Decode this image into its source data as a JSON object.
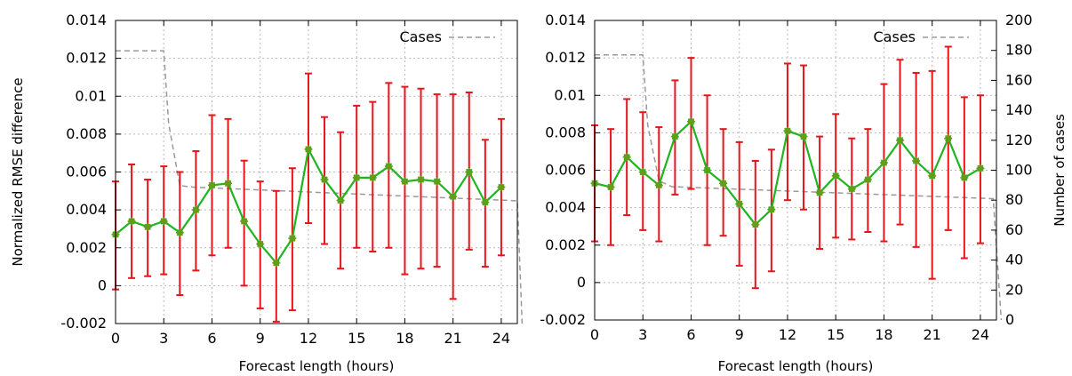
{
  "colors": {
    "error_bar": "#e8141b",
    "line": "#1fb51f",
    "marker": "#6a9a1a",
    "cases": "#9a9a9a",
    "grid": "#b8b8b8"
  },
  "chart_data": [
    {
      "type": "line",
      "title": "",
      "xlabel": "Forecast length (hours)",
      "ylabel": "Normalized RMSE difference",
      "xlim": [
        0,
        25
      ],
      "ylim": [
        -0.002,
        0.014
      ],
      "xticks": [
        0,
        3,
        6,
        9,
        12,
        15,
        18,
        21,
        24
      ],
      "yticks": [
        -0.002,
        0,
        0.002,
        0.004,
        0.006,
        0.008,
        0.01,
        0.012,
        0.014
      ],
      "ytick_labels": [
        "-0.002",
        "0",
        "0.002",
        "0.004",
        "0.006",
        "0.008",
        "0.01",
        "0.012",
        "0.014"
      ],
      "grid": true,
      "legend": {
        "placement": "top-right",
        "entries": [
          "Cases"
        ]
      },
      "series": [
        {
          "x": [
            0,
            1,
            2,
            3,
            4,
            5,
            6,
            7,
            8,
            9,
            10,
            11,
            12,
            13,
            14,
            15,
            16,
            17,
            18,
            19,
            20,
            21,
            22,
            23,
            24
          ],
          "y": [
            0.0027,
            0.0034,
            0.0031,
            0.0034,
            0.0028,
            0.004,
            0.0053,
            0.0054,
            0.0034,
            0.0022,
            0.0012,
            0.0025,
            0.0072,
            0.0056,
            0.0045,
            0.0057,
            0.0057,
            0.0063,
            0.0055,
            0.0056,
            0.0055,
            0.0047,
            0.006,
            0.0044,
            0.0052
          ],
          "ylow": [
            -0.0002,
            0.0004,
            0.0005,
            0.0006,
            -0.0005,
            0.0008,
            0.0016,
            0.002,
            0.0,
            -0.0012,
            -0.0019,
            -0.0013,
            0.0033,
            0.0022,
            0.0009,
            0.002,
            0.0018,
            0.002,
            0.0006,
            0.0009,
            0.001,
            -0.0007,
            0.0019,
            0.001,
            0.0016
          ],
          "yhigh": [
            0.0055,
            0.0064,
            0.0056,
            0.0063,
            0.006,
            0.0071,
            0.009,
            0.0088,
            0.0066,
            0.0055,
            0.005,
            0.0062,
            0.0112,
            0.0089,
            0.0081,
            0.0095,
            0.0097,
            0.0107,
            0.0105,
            0.0104,
            0.0101,
            0.0101,
            0.0102,
            0.0077,
            0.0088
          ]
        },
        {
          "name": "Cases",
          "axis": "secondary",
          "x": [
            0,
            3,
            3.3,
            4,
            4.8,
            25,
            25.3
          ],
          "y": [
            180,
            180,
            132,
            91,
            90,
            81,
            0
          ]
        }
      ],
      "y2lim": [
        0,
        200
      ]
    },
    {
      "type": "line",
      "title": "",
      "xlabel": "Forecast length (hours)",
      "ylabel": "",
      "y2label": "Number of cases",
      "xlim": [
        0,
        25
      ],
      "ylim": [
        -0.002,
        0.014
      ],
      "y2lim": [
        0,
        200
      ],
      "xticks": [
        0,
        3,
        6,
        9,
        12,
        15,
        18,
        21,
        24
      ],
      "yticks": [
        -0.002,
        0,
        0.002,
        0.004,
        0.006,
        0.008,
        0.01,
        0.012,
        0.014
      ],
      "ytick_labels": [
        "-0.002",
        "0",
        "0.002",
        "0.004",
        "0.006",
        "0.008",
        "0.01",
        "0.012",
        "0.014"
      ],
      "y2ticks": [
        0,
        20,
        40,
        60,
        80,
        100,
        120,
        140,
        160,
        180,
        200
      ],
      "grid": true,
      "legend": {
        "placement": "top-right",
        "entries": [
          "Cases"
        ]
      },
      "series": [
        {
          "x": [
            0,
            1,
            2,
            3,
            4,
            5,
            6,
            7,
            8,
            9,
            10,
            11,
            12,
            13,
            14,
            15,
            16,
            17,
            18,
            19,
            20,
            21,
            22,
            23,
            24
          ],
          "y": [
            0.0053,
            0.0051,
            0.0067,
            0.0059,
            0.0052,
            0.0078,
            0.0086,
            0.006,
            0.0053,
            0.0042,
            0.0031,
            0.0039,
            0.0081,
            0.0078,
            0.0048,
            0.0057,
            0.005,
            0.0055,
            0.0064,
            0.0076,
            0.0065,
            0.0057,
            0.0077,
            0.0056,
            0.0061
          ],
          "ylow": [
            0.0022,
            0.002,
            0.0036,
            0.0028,
            0.0022,
            0.0047,
            0.005,
            0.002,
            0.0025,
            0.0009,
            -0.0003,
            0.0006,
            0.0044,
            0.0039,
            0.0018,
            0.0024,
            0.0023,
            0.0027,
            0.0022,
            0.0031,
            0.0019,
            0.0002,
            0.0028,
            0.0013,
            0.0021
          ],
          "yhigh": [
            0.0084,
            0.0082,
            0.0098,
            0.0091,
            0.0083,
            0.0108,
            0.012,
            0.01,
            0.0082,
            0.0075,
            0.0065,
            0.0071,
            0.0117,
            0.0116,
            0.0078,
            0.009,
            0.0077,
            0.0082,
            0.0106,
            0.0119,
            0.0112,
            0.0113,
            0.0126,
            0.0099,
            0.01
          ]
        },
        {
          "name": "Cases",
          "axis": "secondary",
          "x": [
            0,
            3,
            3.3,
            4,
            4.8,
            24.8,
            25.3
          ],
          "y": [
            177,
            177,
            130,
            93,
            89,
            81,
            0
          ]
        }
      ]
    }
  ]
}
